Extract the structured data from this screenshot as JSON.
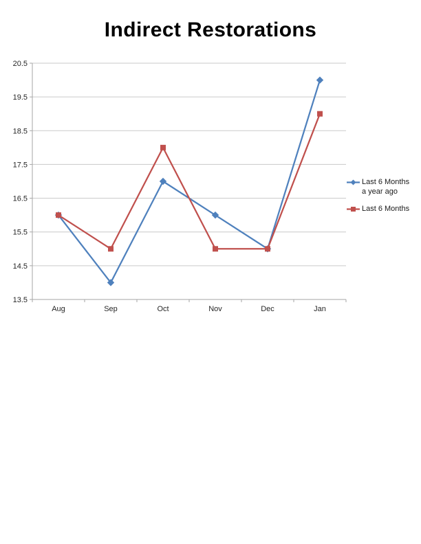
{
  "title": "Indirect Restorations",
  "chart_data": {
    "type": "line",
    "title": "Indirect Restorations",
    "categories": [
      "Aug",
      "Sep",
      "Oct",
      "Nov",
      "Dec",
      "Jan"
    ],
    "series": [
      {
        "name": "Last 6 Months a year ago",
        "values": [
          16,
          14,
          17,
          16,
          15,
          20
        ],
        "color": "#4F81BD",
        "marker": "diamond"
      },
      {
        "name": "Last 6 Months",
        "values": [
          16,
          15,
          18,
          15,
          15,
          19
        ],
        "color": "#C0504D",
        "marker": "square"
      }
    ],
    "xlabel": "",
    "ylabel": "",
    "ylim": [
      13.5,
      20.5
    ],
    "yticks": [
      13.5,
      14.5,
      15.5,
      16.5,
      17.5,
      18.5,
      19.5,
      20.5
    ],
    "ytick_labels": [
      "13.5",
      "14.5",
      "15.5",
      "16.5",
      "17.5",
      "18.5",
      "19.5",
      "20.5"
    ],
    "grid": true,
    "legend_position": "right",
    "legend": [
      {
        "label_lines": [
          "Last 6 Months",
          "a year ago"
        ]
      },
      {
        "label_lines": [
          "Last 6 Months"
        ]
      }
    ]
  },
  "colors": {
    "series_blue": "#4F81BD",
    "series_red": "#C0504D",
    "gridline": "#c9c9c9",
    "axis": "#a6a6a6",
    "tick_label": "#262626",
    "title": "#000000",
    "background": "#ffffff"
  }
}
